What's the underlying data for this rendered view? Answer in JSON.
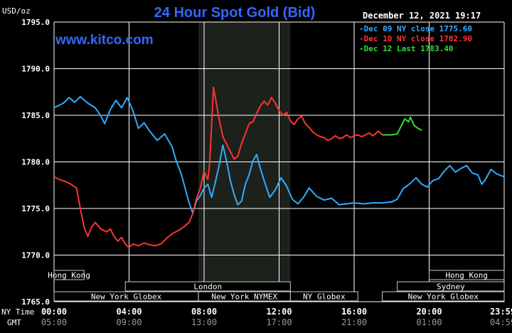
{
  "header": {
    "unit": "USD/oz",
    "title": "24 Hour Spot Gold (Bid)",
    "date": "December 12, 2021 19:17",
    "watermark": "www.kitco.com"
  },
  "legend": [
    {
      "label": "Dec 09 NY close 1775.60",
      "color": "#33aaff"
    },
    {
      "label": "Dec 10 NY close 1782.90",
      "color": "#ff3333"
    },
    {
      "label": "Dec 12 Last 1783.40",
      "color": "#33dd33"
    }
  ],
  "colors": {
    "background": "#000000",
    "grid": "#ffffff",
    "title": "#3366ff",
    "watermark": "#3366ff",
    "text": "#ffffff",
    "session_shade": "#1c211c",
    "market_bar_fill": "#000000",
    "market_bar_border": "#cccccc"
  },
  "markets": [
    {
      "row": 0,
      "label": "Hong Kong",
      "start": 0,
      "end": 1.6
    },
    {
      "row": 0,
      "label": "Hong Kong",
      "start": 20,
      "end": 24
    },
    {
      "row": 1,
      "label": "London",
      "start": 3.8,
      "end": 12.6
    },
    {
      "row": 1,
      "label": "Sydney",
      "start": 18.3,
      "end": 24
    },
    {
      "row": 2,
      "label": "New York Globex",
      "start": 0,
      "end": 7.7
    },
    {
      "row": 2,
      "label": "New York NYMEX",
      "start": 7.7,
      "end": 12.6
    },
    {
      "row": 2,
      "label": "NY Globex",
      "start": 12.6,
      "end": 16.2
    },
    {
      "row": 2,
      "label": "New York Globex",
      "start": 17.5,
      "end": 24
    }
  ],
  "time_axis": {
    "ny_label": "NY Time",
    "gmt_label": "GMT",
    "ny_ticks": [
      "00:00",
      "04:00",
      "08:00",
      "12:00",
      "16:00",
      "20:00",
      "23:59"
    ],
    "gmt_ticks": [
      "05:00",
      "09:00",
      "13:00",
      "17:00",
      "21:00",
      "01:00",
      "04:59"
    ]
  },
  "chart_data": {
    "type": "line",
    "title": "24 Hour Spot Gold (Bid)",
    "ylabel": "USD/oz",
    "xlabel": "",
    "xlim": [
      0,
      24
    ],
    "ylim": [
      1765,
      1795
    ],
    "yticks": [
      "1765.0",
      "1770.0",
      "1775.0",
      "1780.0",
      "1785.0",
      "1790.0",
      "1795.0"
    ],
    "grid": true,
    "legend_position": "top-right",
    "shaded_region": [
      7.7,
      12.6
    ],
    "series": [
      {
        "name": "Dec 09 NY close 1775.60",
        "color": "#33aaff",
        "points": [
          [
            0,
            1785.8
          ],
          [
            0.5,
            1786.3
          ],
          [
            0.8,
            1786.9
          ],
          [
            1.1,
            1786.4
          ],
          [
            1.4,
            1787.0
          ],
          [
            1.8,
            1786.3
          ],
          [
            2.2,
            1785.8
          ],
          [
            2.5,
            1784.9
          ],
          [
            2.7,
            1784.1
          ],
          [
            3.0,
            1785.6
          ],
          [
            3.3,
            1786.6
          ],
          [
            3.6,
            1785.8
          ],
          [
            3.9,
            1786.9
          ],
          [
            4.2,
            1785.5
          ],
          [
            4.5,
            1783.6
          ],
          [
            4.8,
            1784.2
          ],
          [
            5.1,
            1783.3
          ],
          [
            5.5,
            1782.3
          ],
          [
            5.9,
            1783.0
          ],
          [
            6.3,
            1781.6
          ],
          [
            6.5,
            1780.2
          ],
          [
            6.8,
            1778.6
          ],
          [
            7.0,
            1777.1
          ],
          [
            7.2,
            1775.6
          ],
          [
            7.4,
            1774.5
          ],
          [
            7.6,
            1775.8
          ],
          [
            7.8,
            1776.4
          ],
          [
            8.0,
            1777.2
          ],
          [
            8.2,
            1777.6
          ],
          [
            8.4,
            1776.2
          ],
          [
            8.6,
            1777.8
          ],
          [
            8.8,
            1779.6
          ],
          [
            9.0,
            1781.8
          ],
          [
            9.2,
            1780.1
          ],
          [
            9.4,
            1778.0
          ],
          [
            9.6,
            1776.5
          ],
          [
            9.8,
            1775.4
          ],
          [
            10.0,
            1775.8
          ],
          [
            10.2,
            1777.6
          ],
          [
            10.4,
            1778.6
          ],
          [
            10.6,
            1780.1
          ],
          [
            10.8,
            1780.8
          ],
          [
            11.0,
            1779.3
          ],
          [
            11.2,
            1778.0
          ],
          [
            11.5,
            1776.2
          ],
          [
            11.8,
            1777.0
          ],
          [
            12.1,
            1778.3
          ],
          [
            12.4,
            1777.4
          ],
          [
            12.7,
            1776.0
          ],
          [
            13.0,
            1775.5
          ],
          [
            13.3,
            1776.2
          ],
          [
            13.6,
            1777.2
          ],
          [
            14.0,
            1776.3
          ],
          [
            14.4,
            1775.9
          ],
          [
            14.8,
            1776.1
          ],
          [
            15.2,
            1775.4
          ],
          [
            15.6,
            1775.5
          ],
          [
            16.0,
            1775.6
          ],
          [
            16.5,
            1775.5
          ],
          [
            17.0,
            1775.6
          ],
          [
            17.5,
            1775.6
          ],
          [
            18.0,
            1775.7
          ],
          [
            18.3,
            1776.0
          ],
          [
            18.6,
            1777.1
          ],
          [
            19.0,
            1777.7
          ],
          [
            19.3,
            1778.3
          ],
          [
            19.6,
            1777.6
          ],
          [
            19.9,
            1777.3
          ],
          [
            20.2,
            1778.0
          ],
          [
            20.5,
            1778.2
          ],
          [
            20.8,
            1779.0
          ],
          [
            21.1,
            1779.6
          ],
          [
            21.4,
            1778.9
          ],
          [
            21.7,
            1779.3
          ],
          [
            22.0,
            1779.6
          ],
          [
            22.3,
            1778.8
          ],
          [
            22.6,
            1778.6
          ],
          [
            22.8,
            1777.6
          ],
          [
            23.0,
            1778.1
          ],
          [
            23.3,
            1779.2
          ],
          [
            23.6,
            1778.7
          ],
          [
            24.0,
            1778.4
          ]
        ]
      },
      {
        "name": "Dec 10 NY close 1782.90",
        "color": "#ff3333",
        "points": [
          [
            0,
            1778.4
          ],
          [
            0.3,
            1778.1
          ],
          [
            0.6,
            1777.9
          ],
          [
            0.9,
            1777.6
          ],
          [
            1.2,
            1777.2
          ],
          [
            1.4,
            1775.0
          ],
          [
            1.6,
            1773.0
          ],
          [
            1.8,
            1772.0
          ],
          [
            2.0,
            1773.0
          ],
          [
            2.2,
            1773.5
          ],
          [
            2.5,
            1772.8
          ],
          [
            2.8,
            1772.5
          ],
          [
            3.0,
            1772.8
          ],
          [
            3.2,
            1772.0
          ],
          [
            3.4,
            1771.5
          ],
          [
            3.6,
            1771.9
          ],
          [
            3.8,
            1771.2
          ],
          [
            4.0,
            1770.8
          ],
          [
            4.2,
            1771.2
          ],
          [
            4.5,
            1771.0
          ],
          [
            4.8,
            1771.3
          ],
          [
            5.1,
            1771.1
          ],
          [
            5.4,
            1771.0
          ],
          [
            5.7,
            1771.2
          ],
          [
            6.0,
            1771.8
          ],
          [
            6.3,
            1772.3
          ],
          [
            6.6,
            1772.6
          ],
          [
            6.9,
            1773.0
          ],
          [
            7.2,
            1773.5
          ],
          [
            7.4,
            1774.5
          ],
          [
            7.6,
            1776.1
          ],
          [
            7.8,
            1777.2
          ],
          [
            8.0,
            1779.0
          ],
          [
            8.2,
            1778.1
          ],
          [
            8.3,
            1779.9
          ],
          [
            8.4,
            1784.0
          ],
          [
            8.5,
            1788.0
          ],
          [
            8.6,
            1786.9
          ],
          [
            8.8,
            1784.6
          ],
          [
            9.0,
            1782.7
          ],
          [
            9.2,
            1781.9
          ],
          [
            9.4,
            1781.1
          ],
          [
            9.6,
            1780.3
          ],
          [
            9.8,
            1780.6
          ],
          [
            10.0,
            1782.0
          ],
          [
            10.2,
            1783.0
          ],
          [
            10.4,
            1784.1
          ],
          [
            10.6,
            1784.3
          ],
          [
            10.8,
            1785.2
          ],
          [
            11.0,
            1786.0
          ],
          [
            11.2,
            1786.5
          ],
          [
            11.4,
            1786.1
          ],
          [
            11.6,
            1786.9
          ],
          [
            11.8,
            1786.3
          ],
          [
            12.0,
            1785.5
          ],
          [
            12.2,
            1785.0
          ],
          [
            12.4,
            1785.3
          ],
          [
            12.6,
            1784.4
          ],
          [
            12.8,
            1784.0
          ],
          [
            13.0,
            1784.6
          ],
          [
            13.2,
            1784.9
          ],
          [
            13.4,
            1784.1
          ],
          [
            13.6,
            1783.7
          ],
          [
            13.8,
            1783.2
          ],
          [
            14.0,
            1782.9
          ],
          [
            14.2,
            1782.7
          ],
          [
            14.4,
            1782.6
          ],
          [
            14.6,
            1782.3
          ],
          [
            14.8,
            1782.5
          ],
          [
            15.0,
            1782.8
          ],
          [
            15.2,
            1782.5
          ],
          [
            15.4,
            1782.6
          ],
          [
            15.6,
            1782.9
          ],
          [
            15.8,
            1782.6
          ],
          [
            16.0,
            1782.8
          ],
          [
            16.2,
            1782.9
          ],
          [
            16.4,
            1782.7
          ],
          [
            16.6,
            1782.9
          ],
          [
            16.8,
            1783.1
          ],
          [
            17.0,
            1782.8
          ],
          [
            17.3,
            1783.3
          ],
          [
            17.5,
            1782.9
          ]
        ]
      },
      {
        "name": "Dec 12 Last 1783.40",
        "color": "#33dd33",
        "points": [
          [
            17.5,
            1782.9
          ],
          [
            18.0,
            1782.9
          ],
          [
            18.3,
            1783.0
          ],
          [
            18.5,
            1783.8
          ],
          [
            18.7,
            1784.6
          ],
          [
            18.9,
            1784.3
          ],
          [
            19.0,
            1784.8
          ],
          [
            19.2,
            1783.9
          ],
          [
            19.4,
            1783.6
          ],
          [
            19.6,
            1783.4
          ]
        ]
      }
    ]
  }
}
